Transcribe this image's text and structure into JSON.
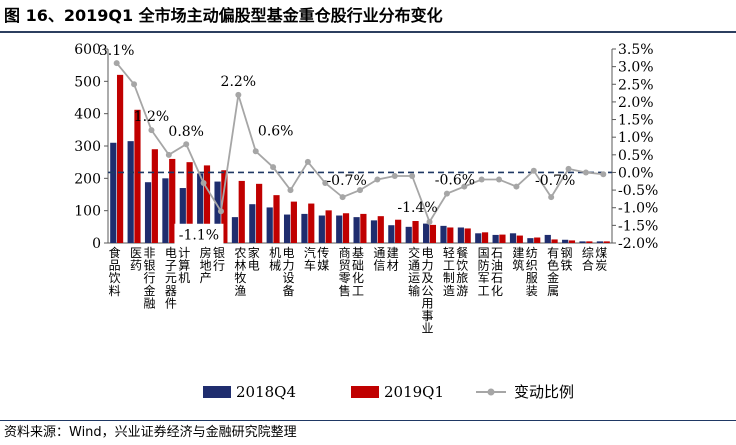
{
  "figure": {
    "title": "图 16、2019Q1 全市场主动偏股型基金重仓股行业分布变化",
    "source": "资料来源：Wind，兴业证券经济与金融研究院整理"
  },
  "chart_data": {
    "type": "bar",
    "title": "图 16、2019Q1 全市场主动偏股型基金重仓股行业分布变化",
    "categories": [
      "食品饮料",
      "医药",
      "非银行金融",
      "电子元器件",
      "计算机",
      "房地产",
      "银行",
      "农林牧渔",
      "家电",
      "机械",
      "电力设备",
      "汽车",
      "传媒",
      "商贸零售",
      "基础化工",
      "通信",
      "建材",
      "交通运输",
      "电力及公用事业",
      "轻工制造",
      "餐饮旅游",
      "国防军工",
      "石油石化",
      "建筑",
      "纺织服装",
      "有色金属",
      "钢铁",
      "综合",
      "煤炭"
    ],
    "series": [
      {
        "name": "2018Q4",
        "color": "#1f2d6e",
        "axis": "left",
        "values": [
          310,
          315,
          188,
          200,
          170,
          215,
          190,
          80,
          120,
          110,
          88,
          90,
          85,
          85,
          80,
          70,
          55,
          50,
          60,
          53,
          48,
          30,
          25,
          30,
          15,
          25,
          10,
          5,
          5
        ]
      },
      {
        "name": "2019Q1",
        "color": "#c00000",
        "axis": "left",
        "values": [
          520,
          412,
          290,
          260,
          250,
          240,
          225,
          192,
          183,
          148,
          128,
          122,
          101,
          92,
          90,
          83,
          72,
          68,
          56,
          48,
          45,
          33,
          26,
          23,
          17,
          11,
          8,
          5,
          5
        ]
      },
      {
        "name": "变动比例",
        "color": "#a6a6a6",
        "axis": "right",
        "unit": "%",
        "values": [
          3.1,
          2.5,
          1.2,
          0.5,
          0.8,
          -0.3,
          -1.1,
          2.2,
          0.6,
          0.15,
          -0.5,
          0.3,
          -0.3,
          -0.7,
          -0.5,
          -0.2,
          -0.1,
          -0.1,
          -1.4,
          -0.6,
          -0.4,
          -0.2,
          -0.2,
          -0.4,
          0.05,
          -0.7,
          0.1,
          0.0,
          -0.05
        ]
      }
    ],
    "y_left": {
      "ylim": [
        0,
        600
      ],
      "ticks": [
        0,
        100,
        200,
        300,
        400,
        500,
        600
      ]
    },
    "y_right": {
      "ylim": [
        -2.0,
        3.5
      ],
      "ticks": [
        "3.5%",
        "3.0%",
        "2.5%",
        "2.0%",
        "1.5%",
        "1.0%",
        "0.5%",
        "0.0%",
        "-0.5%",
        "-1.0%",
        "-1.5%",
        "-2.0%"
      ]
    },
    "reference_line": {
      "axis": "right",
      "value": 0.0,
      "style": "dashed",
      "color": "#1f3864"
    },
    "annotations": [
      {
        "text": "3.1%",
        "category": "食品饮料"
      },
      {
        "text": "1.2%",
        "category": "非银行金融"
      },
      {
        "text": "0.8%",
        "category": "计算机"
      },
      {
        "text": "-1.1%",
        "category": "银行",
        "boxed": true
      },
      {
        "text": "2.2%",
        "category": "农林牧渔"
      },
      {
        "text": "0.6%",
        "category": "家电"
      },
      {
        "text": "-0.7%",
        "category": "商贸零售"
      },
      {
        "text": "-1.4%",
        "category": "电力及公用事业"
      },
      {
        "text": "-0.6%",
        "category": "轻工制造"
      },
      {
        "text": "-0.7%",
        "category": "有色金属"
      }
    ],
    "legend": {
      "position": "bottom",
      "items": [
        {
          "label": "2018Q4",
          "kind": "bar"
        },
        {
          "label": "2019Q1",
          "kind": "bar"
        },
        {
          "label": "变动比例",
          "kind": "line-marker"
        }
      ]
    },
    "grid": false
  }
}
